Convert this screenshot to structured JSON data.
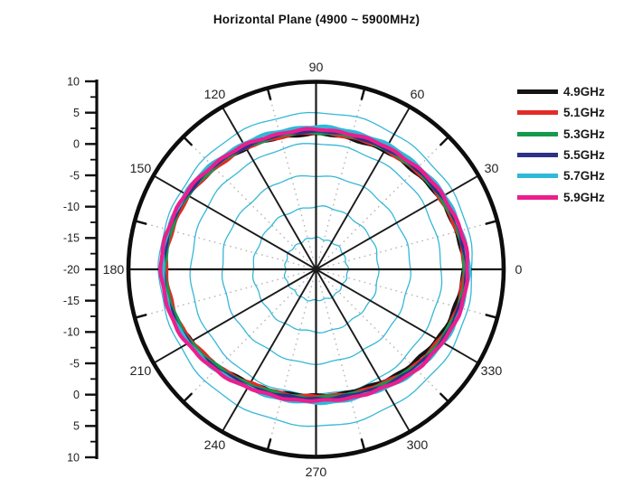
{
  "title": "Horizontal Plane (4900 ~ 5900MHz)",
  "chart_data": {
    "type": "line",
    "subtype": "polar-radiation-pattern",
    "title": "Horizontal Plane (4900 ~ 5900MHz)",
    "units": "dB",
    "legend_position": "right",
    "grid": {
      "circle_color": "#35b7d7",
      "dotted_ray_color": "#b5b5b5",
      "axis_color": "#0d0d0d",
      "circle_step_db": 5,
      "solid_ray_step_deg": 30,
      "dotted_ray_step_deg": 30,
      "dotted_ray_offset_deg": 15
    },
    "radial_axis": {
      "min": -20,
      "max": 10,
      "major_step": 5,
      "minor_step": 2.5,
      "tick_labels": [
        "10",
        "5",
        "0",
        "-5",
        "-10",
        "-15",
        "-20",
        "-15",
        "-10",
        "-5",
        "0",
        "5",
        "10"
      ]
    },
    "angle_labels": [
      "0",
      "30",
      "60",
      "90",
      "120",
      "150",
      "180",
      "210",
      "240",
      "270",
      "300",
      "330"
    ],
    "angles_deg": [
      0,
      15,
      30,
      45,
      60,
      75,
      90,
      105,
      120,
      135,
      150,
      165,
      180,
      195,
      210,
      225,
      240,
      255,
      270,
      285,
      300,
      315,
      330,
      345
    ],
    "series": [
      {
        "name": "4.9GHz",
        "color": "#141414",
        "values": [
          3.5,
          3.2,
          2.7,
          2.2,
          1.8,
          1.6,
          1.6,
          1.8,
          2.3,
          3.0,
          3.7,
          4.1,
          4.2,
          3.8,
          3.0,
          1.9,
          1.0,
          0.4,
          0.2,
          0.3,
          0.8,
          1.5,
          2.3,
          3.0
        ]
      },
      {
        "name": "5.1GHz",
        "color": "#e22c26",
        "values": [
          3.6,
          3.3,
          2.8,
          2.4,
          2.0,
          1.8,
          1.8,
          1.9,
          2.3,
          2.8,
          3.4,
          3.8,
          3.9,
          3.6,
          2.9,
          1.9,
          1.0,
          0.5,
          0.3,
          0.5,
          1.1,
          1.9,
          2.7,
          3.3
        ]
      },
      {
        "name": "5.3GHz",
        "color": "#149a4e",
        "values": [
          3.8,
          3.5,
          3.0,
          2.5,
          2.2,
          2.0,
          1.9,
          2.1,
          2.5,
          3.0,
          3.6,
          4.0,
          4.1,
          3.8,
          3.1,
          2.1,
          1.2,
          0.7,
          0.5,
          0.7,
          1.3,
          2.1,
          2.9,
          3.5
        ]
      },
      {
        "name": "5.5GHz",
        "color": "#2e3187",
        "values": [
          4.0,
          3.7,
          3.2,
          2.7,
          2.3,
          2.1,
          2.1,
          2.2,
          2.6,
          3.2,
          3.8,
          4.2,
          4.4,
          4.1,
          3.4,
          2.4,
          1.5,
          0.9,
          0.7,
          0.9,
          1.5,
          2.3,
          3.1,
          3.7
        ]
      },
      {
        "name": "5.7GHz",
        "color": "#30b8d8",
        "values": [
          4.3,
          4.0,
          3.6,
          3.2,
          2.9,
          2.7,
          2.7,
          2.8,
          3.1,
          3.6,
          4.1,
          4.4,
          4.5,
          4.2,
          3.5,
          2.6,
          1.8,
          1.4,
          1.3,
          1.4,
          1.9,
          2.7,
          3.4,
          4.0
        ]
      },
      {
        "name": "5.9GHz",
        "color": "#ec1e8d",
        "values": [
          4.2,
          3.9,
          3.4,
          2.9,
          2.5,
          2.3,
          2.3,
          2.4,
          2.8,
          3.4,
          4.0,
          4.5,
          4.7,
          4.4,
          3.7,
          2.7,
          1.8,
          1.2,
          1.0,
          1.2,
          1.8,
          2.6,
          3.3,
          3.9
        ]
      }
    ]
  }
}
